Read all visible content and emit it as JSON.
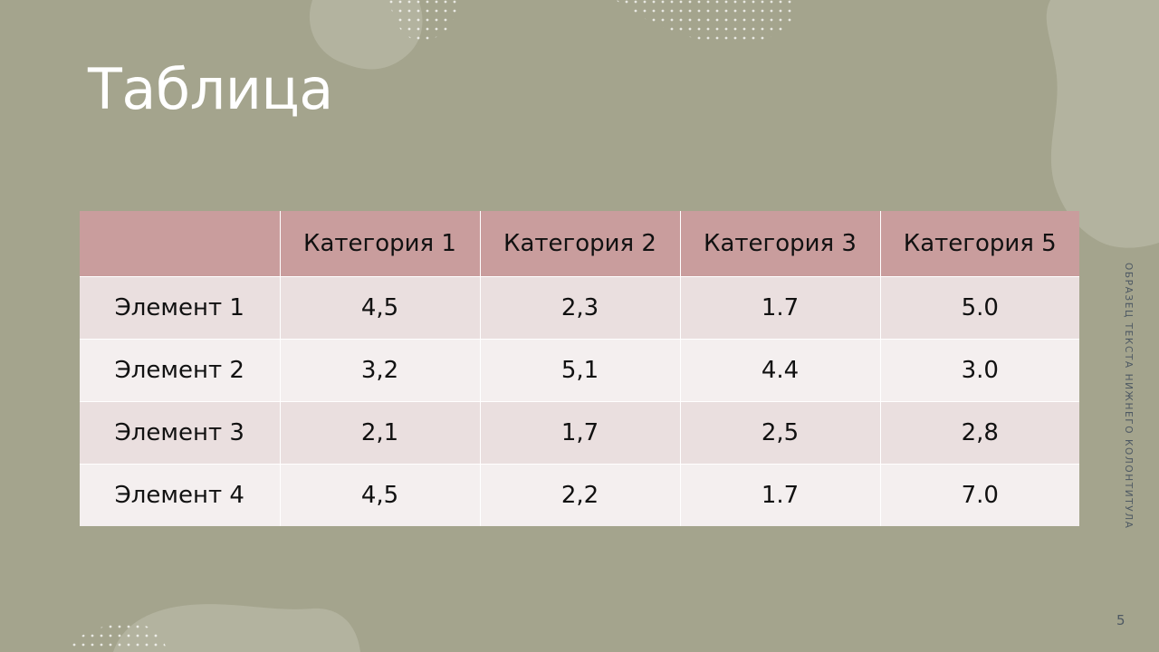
{
  "slide": {
    "title": "Таблица",
    "footer_text": "ОБРАЗЕЦ ТЕКСТА НИЖНЕГО КОЛОНТИТУЛА",
    "page_number": "5"
  },
  "colors": {
    "background": "#a4a48d",
    "header_row": "#c99d9d",
    "row_odd": "#eadfdf",
    "row_even": "#f4efef",
    "blob": "#b3b39f"
  },
  "table": {
    "headers": [
      "",
      "Категория 1",
      "Категория 2",
      "Категория 3",
      "Категория 5"
    ],
    "rows": [
      [
        "Элемент 1",
        "4,5",
        "2,3",
        "1.7",
        "5.0"
      ],
      [
        "Элемент 2",
        "3,2",
        "5,1",
        "4.4",
        "3.0"
      ],
      [
        "Элемент 3",
        "2,1",
        "1,7",
        "2,5",
        "2,8"
      ],
      [
        "Элемент 4",
        "4,5",
        "2,2",
        "1.7",
        "7.0"
      ]
    ]
  }
}
